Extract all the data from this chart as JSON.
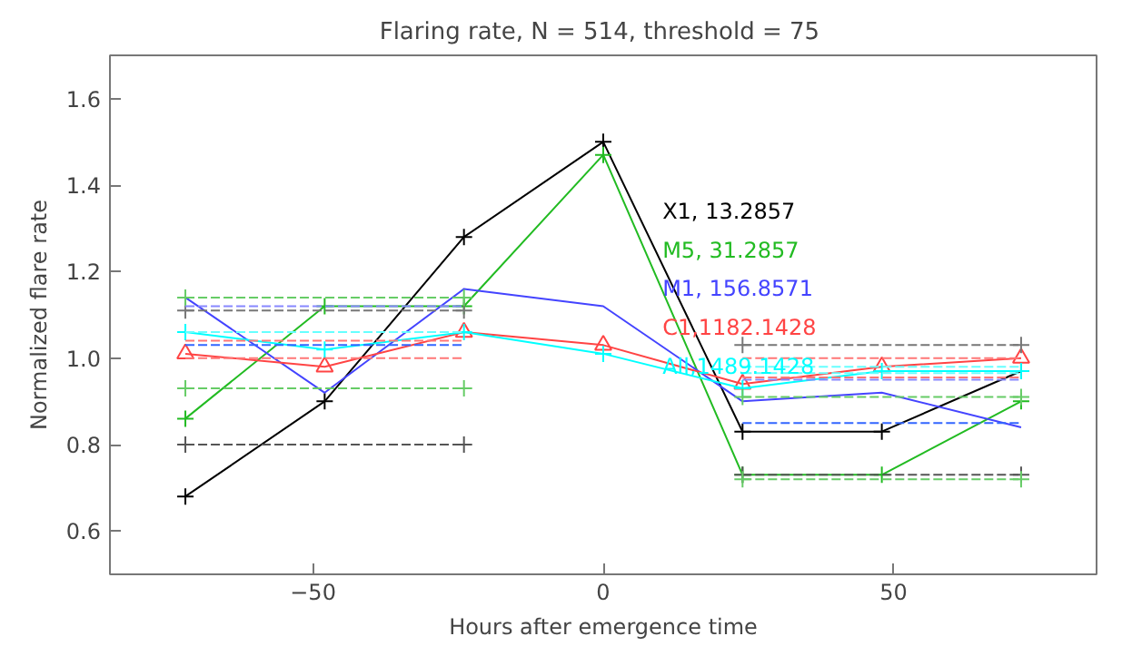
{
  "chart_data": {
    "type": "line",
    "title": "Flaring rate, N =  514, threshold = 75",
    "xlabel": "Hours after emergence time",
    "ylabel": "Normalized flare rate",
    "x": [
      -72,
      -48,
      -24,
      0,
      24,
      48,
      72
    ],
    "xlim": [
      -85,
      85
    ],
    "xticks": [
      -50,
      0,
      50
    ],
    "ylim": [
      0.5,
      1.7
    ],
    "yticks": [
      0.6,
      0.8,
      {
        "value": 1.0,
        "label": "1.0"
      },
      1.2,
      1.4,
      1.6
    ],
    "grid": false,
    "legend": "center",
    "series": [
      {
        "name": "X1,    13.2857",
        "color": "#000000",
        "marker": "cross",
        "values": [
          0.68,
          0.9,
          1.28,
          1.5,
          0.83,
          0.83,
          0.97
        ]
      },
      {
        "name": "M5,    31.2857",
        "color": "#22bb22",
        "marker": "cross",
        "values": [
          0.86,
          1.12,
          1.12,
          1.47,
          0.73,
          0.73,
          0.9
        ]
      },
      {
        "name": "M1,  156.8571",
        "color": "#4444ff",
        "marker": "none",
        "values": [
          1.14,
          0.92,
          1.16,
          1.12,
          0.9,
          0.92,
          0.84
        ]
      },
      {
        "name": "C1,1182.1428",
        "color": "#ff4444",
        "marker": "triangle",
        "values": [
          1.01,
          0.98,
          1.06,
          1.03,
          0.94,
          0.98,
          1.0
        ]
      },
      {
        "name": "All,1489.1428",
        "color": "#00ffff",
        "marker": "cross",
        "values": [
          1.06,
          1.02,
          1.06,
          1.01,
          0.93,
          0.97,
          0.97
        ]
      },
      {
        "color": "#555555",
        "line_style": "dashed",
        "marker": "cross",
        "x": [
          -72,
          -24
        ],
        "values": [
          0.8,
          0.8
        ]
      },
      {
        "color": "#777777",
        "line_style": "dashed",
        "marker": "cross",
        "x": [
          -72,
          -24
        ],
        "values": [
          1.11,
          1.11
        ]
      },
      {
        "color": "#66cc66",
        "line_style": "dashed",
        "marker": "cross",
        "x": [
          -72,
          -24
        ],
        "values": [
          1.14,
          1.14
        ]
      },
      {
        "color": "#66cc66",
        "line_style": "dashed",
        "marker": "cross",
        "x": [
          -72,
          -24
        ],
        "values": [
          0.93,
          0.93
        ]
      },
      {
        "color": "#8888ff",
        "line_style": "dashed",
        "marker": "none",
        "x": [
          -72,
          -24
        ],
        "values": [
          1.12,
          1.12
        ]
      },
      {
        "color": "#3366ff",
        "line_style": "dashed",
        "marker": "none",
        "x": [
          -72,
          -24
        ],
        "values": [
          1.03,
          1.03
        ]
      },
      {
        "color": "#ff7777",
        "line_style": "dashed",
        "marker": "none",
        "x": [
          -72,
          -24
        ],
        "values": [
          1.04,
          1.04
        ]
      },
      {
        "color": "#ff7777",
        "line_style": "dashed",
        "marker": "none",
        "x": [
          -72,
          -24
        ],
        "values": [
          1.0,
          1.0
        ]
      },
      {
        "color": "#66ffff",
        "line_style": "dashed",
        "marker": "none",
        "x": [
          -72,
          -24
        ],
        "values": [
          1.06,
          1.06
        ]
      },
      {
        "color": "#777777",
        "line_style": "dashed",
        "marker": "cross",
        "x": [
          24,
          72
        ],
        "values": [
          1.03,
          1.03
        ]
      },
      {
        "color": "#555555",
        "line_style": "dashed",
        "marker": "cross",
        "x": [
          24,
          72
        ],
        "values": [
          0.73,
          0.73
        ]
      },
      {
        "color": "#66cc66",
        "line_style": "dashed",
        "marker": "cross",
        "x": [
          24,
          72
        ],
        "values": [
          0.91,
          0.91
        ]
      },
      {
        "color": "#66cc66",
        "line_style": "dashed",
        "marker": "cross",
        "x": [
          24,
          72
        ],
        "values": [
          0.72,
          0.72
        ]
      },
      {
        "color": "#8888ff",
        "line_style": "dashed",
        "marker": "none",
        "x": [
          24,
          72
        ],
        "values": [
          0.95,
          0.95
        ]
      },
      {
        "color": "#3366ff",
        "line_style": "dashed",
        "marker": "none",
        "x": [
          24,
          72
        ],
        "values": [
          0.85,
          0.85
        ]
      },
      {
        "color": "#ff7777",
        "line_style": "dashed",
        "marker": "none",
        "x": [
          24,
          72
        ],
        "values": [
          1.0,
          1.0
        ]
      },
      {
        "color": "#ff7777",
        "line_style": "dashed",
        "marker": "none",
        "x": [
          24,
          72
        ],
        "values": [
          0.955,
          0.955
        ]
      },
      {
        "color": "#66ffff",
        "line_style": "dashed",
        "marker": "none",
        "x": [
          24,
          72
        ],
        "values": [
          0.98,
          0.98
        ]
      },
      {
        "color": "#66ffff",
        "line_style": "dashed",
        "marker": "none",
        "x": [
          24,
          72
        ],
        "values": [
          0.965,
          0.965
        ]
      }
    ]
  }
}
